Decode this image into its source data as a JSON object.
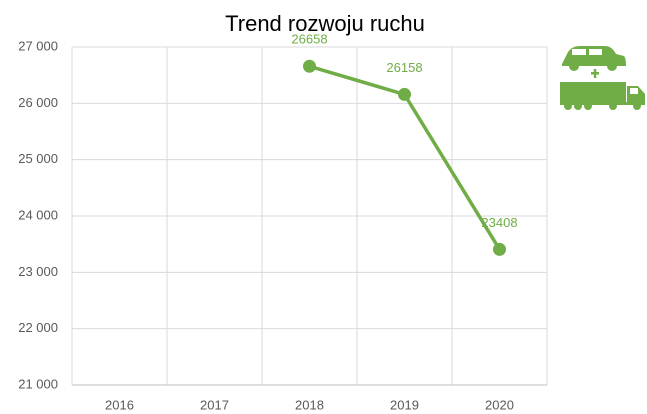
{
  "chart_data": {
    "type": "line",
    "title": "Trend rozwoju ruchu",
    "categories": [
      "2016",
      "2017",
      "2018",
      "2019",
      "2020"
    ],
    "series": [
      {
        "name": null,
        "color": "#70ad47",
        "values": [
          null,
          null,
          26658,
          26158,
          23408
        ]
      }
    ],
    "ylim": [
      21000,
      27000
    ],
    "yticks": [
      {
        "value": 21000,
        "label": "21 000"
      },
      {
        "value": 22000,
        "label": "22 000"
      },
      {
        "value": 23000,
        "label": "23 000"
      },
      {
        "value": 24000,
        "label": "24 000"
      },
      {
        "value": 25000,
        "label": "25 000"
      },
      {
        "value": 26000,
        "label": "26 000"
      },
      {
        "value": 27000,
        "label": "27 000"
      }
    ],
    "grid": true
  }
}
